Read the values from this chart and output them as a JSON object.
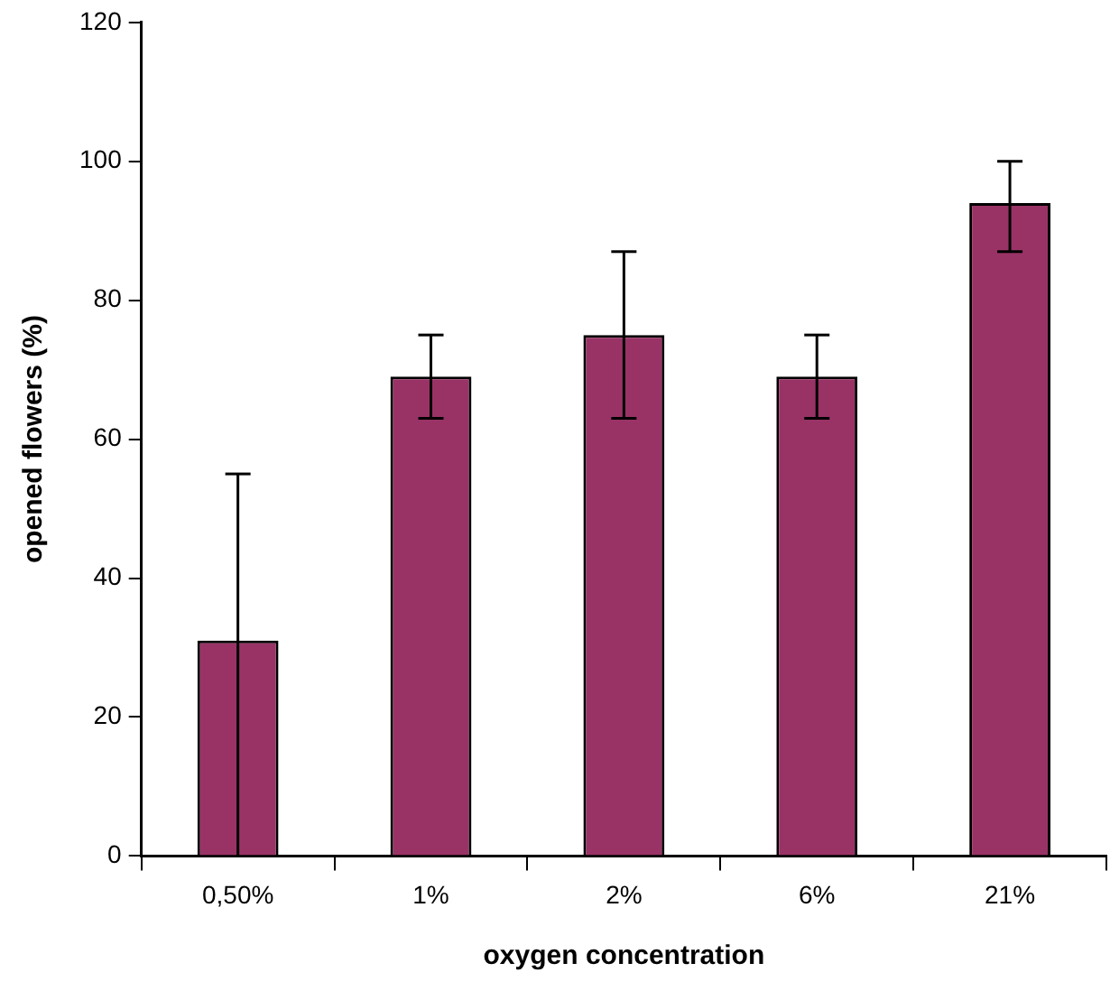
{
  "chart_data": {
    "type": "bar",
    "xlabel": "oxygen concentration",
    "ylabel": "opened flowers (%)",
    "categories": [
      "0,50%",
      "1%",
      "2%",
      "6%",
      "21%"
    ],
    "values": [
      31,
      69,
      75,
      69,
      94
    ],
    "errors": [
      [
        0,
        55
      ],
      [
        63,
        75
      ],
      [
        63,
        87
      ],
      [
        63,
        75
      ],
      [
        87,
        100
      ]
    ],
    "color": "#993366",
    "ylim": [
      0,
      120
    ],
    "yticks": [
      0,
      20,
      40,
      60,
      80,
      100,
      120
    ],
    "grid": false,
    "legend": false
  }
}
